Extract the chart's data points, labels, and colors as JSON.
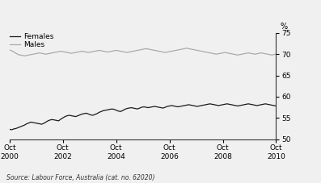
{
  "ylabel_right": "%",
  "source_text": "Source: Labour Force, Australia (cat. no. 62020)",
  "ylim": [
    50,
    75
  ],
  "yticks": [
    50,
    55,
    60,
    65,
    70,
    75
  ],
  "xtick_years": [
    2000,
    2002,
    2004,
    2006,
    2008,
    2010
  ],
  "females_color": "#1a1a1a",
  "males_color": "#aaaaaa",
  "legend_females": "Females",
  "legend_males": "Males",
  "females_data": [
    52.3,
    52.2,
    52.4,
    52.5,
    52.7,
    52.9,
    53.1,
    53.3,
    53.6,
    53.8,
    54.0,
    53.9,
    53.8,
    53.7,
    53.6,
    53.5,
    53.7,
    54.0,
    54.3,
    54.5,
    54.6,
    54.5,
    54.4,
    54.3,
    54.7,
    55.0,
    55.3,
    55.5,
    55.6,
    55.5,
    55.4,
    55.3,
    55.5,
    55.7,
    55.9,
    56.0,
    56.1,
    55.9,
    55.7,
    55.6,
    55.8,
    56.0,
    56.3,
    56.5,
    56.7,
    56.8,
    56.9,
    57.0,
    57.1,
    57.0,
    56.8,
    56.6,
    56.5,
    56.7,
    57.0,
    57.2,
    57.3,
    57.4,
    57.3,
    57.2,
    57.1,
    57.3,
    57.5,
    57.6,
    57.5,
    57.4,
    57.5,
    57.6,
    57.7,
    57.6,
    57.5,
    57.4,
    57.3,
    57.5,
    57.7,
    57.8,
    57.9,
    57.8,
    57.7,
    57.6,
    57.7,
    57.8,
    57.9,
    58.0,
    58.1,
    58.0,
    57.9,
    57.8,
    57.7,
    57.8,
    57.9,
    58.0,
    58.1,
    58.2,
    58.3,
    58.2,
    58.1,
    58.0,
    57.9,
    58.0,
    58.1,
    58.2,
    58.3,
    58.2,
    58.1,
    58.0,
    57.9,
    57.8,
    57.9,
    58.0,
    58.1,
    58.2,
    58.3,
    58.2,
    58.1,
    58.0,
    57.9,
    58.0,
    58.1,
    58.2,
    58.3,
    58.2,
    58.1,
    58.0,
    57.9,
    57.8
  ],
  "males_data": [
    71.0,
    70.8,
    70.5,
    70.2,
    69.9,
    69.8,
    69.7,
    69.6,
    69.7,
    69.8,
    69.9,
    70.0,
    70.1,
    70.2,
    70.3,
    70.2,
    70.1,
    70.0,
    70.1,
    70.2,
    70.3,
    70.4,
    70.5,
    70.6,
    70.7,
    70.6,
    70.5,
    70.4,
    70.3,
    70.2,
    70.3,
    70.4,
    70.5,
    70.6,
    70.7,
    70.6,
    70.5,
    70.4,
    70.5,
    70.6,
    70.7,
    70.8,
    70.9,
    70.8,
    70.7,
    70.6,
    70.5,
    70.6,
    70.7,
    70.8,
    70.9,
    70.8,
    70.7,
    70.6,
    70.5,
    70.4,
    70.5,
    70.6,
    70.7,
    70.8,
    70.9,
    71.0,
    71.1,
    71.2,
    71.3,
    71.2,
    71.1,
    71.0,
    70.9,
    70.8,
    70.7,
    70.6,
    70.5,
    70.4,
    70.5,
    70.6,
    70.7,
    70.8,
    70.9,
    71.0,
    71.1,
    71.2,
    71.3,
    71.4,
    71.3,
    71.2,
    71.1,
    71.0,
    70.9,
    70.8,
    70.7,
    70.6,
    70.5,
    70.4,
    70.3,
    70.2,
    70.1,
    70.0,
    70.1,
    70.2,
    70.3,
    70.4,
    70.3,
    70.2,
    70.1,
    70.0,
    69.9,
    69.8,
    69.9,
    70.0,
    70.1,
    70.2,
    70.3,
    70.2,
    70.1,
    70.0,
    70.1,
    70.2,
    70.3,
    70.2,
    70.1,
    70.0,
    69.9,
    69.8,
    69.9,
    70.0
  ],
  "bg_color": "#f0f0f0",
  "plot_bg_color": "#f5f5f5"
}
